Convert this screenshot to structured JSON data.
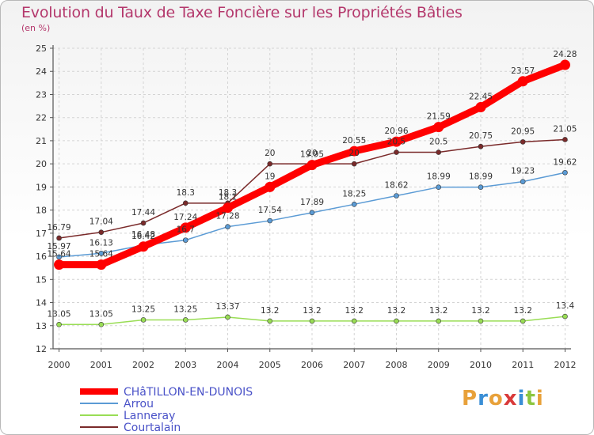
{
  "header": {
    "title": "Evolution du Taux de Taxe Foncière sur les Propriétés Bâties",
    "unit": "(en %)"
  },
  "logo": {
    "text": "Proxiti"
  },
  "colors": {
    "title": "#b4386c",
    "CHÂTILLON-EN-DUNOIS": "#ff0000",
    "Arrou": "#5b9bd5",
    "Lanneray": "#99dd55",
    "Courtalain": "#7a2a2a"
  },
  "chart_data": {
    "type": "line",
    "title": "Evolution du Taux de Taxe Foncière sur les Propriétés Bâties",
    "ylabel": "(en %)",
    "xlabel": "",
    "x": [
      "2000",
      "2001",
      "2002",
      "2003",
      "2004",
      "2005",
      "2006",
      "2007",
      "2008",
      "2009",
      "2010",
      "2011",
      "2012"
    ],
    "ylim": [
      12,
      25
    ],
    "yticks": [
      "12",
      "13",
      "14",
      "15",
      "16",
      "17",
      "18",
      "19",
      "20",
      "21",
      "22",
      "23",
      "24",
      "25"
    ],
    "grid": true,
    "legend": "bottom-left",
    "series": [
      {
        "name": "CHâTILLON-EN-DUNOIS",
        "values": [
          15.64,
          15.64,
          16.42,
          17.24,
          18.1,
          19,
          19.95,
          20.55,
          20.96,
          21.59,
          22.45,
          23.57,
          24.28
        ],
        "labels": [
          "15.64",
          "15.64",
          "16.42",
          "17.24",
          "18.1",
          "19",
          "19.95",
          "20.55",
          "20.96",
          "21.59",
          "22.45",
          "23.57",
          "24.28"
        ]
      },
      {
        "name": "Arrou",
        "values": [
          15.97,
          16.13,
          16.48,
          16.7,
          17.28,
          17.54,
          17.89,
          18.25,
          18.62,
          18.99,
          18.99,
          19.23,
          19.62
        ],
        "labels": [
          "15.97",
          "16.13",
          "16.48",
          "16.7",
          "17.28",
          "17.54",
          "17.89",
          "18.25",
          "18.62",
          "18.99",
          "18.99",
          "19.23",
          "19.62"
        ]
      },
      {
        "name": "Lanneray",
        "values": [
          13.05,
          13.05,
          13.25,
          13.25,
          13.37,
          13.2,
          13.2,
          13.2,
          13.2,
          13.2,
          13.2,
          13.2,
          13.4
        ],
        "labels": [
          "13.05",
          "13.05",
          "13.25",
          "13.25",
          "13.37",
          "13.2",
          "13.2",
          "13.2",
          "13.2",
          "13.2",
          "13.2",
          "13.2",
          "13.4"
        ]
      },
      {
        "name": "Courtalain",
        "values": [
          16.79,
          17.04,
          17.44,
          18.3,
          18.3,
          20,
          20,
          20,
          20.5,
          20.5,
          20.75,
          20.95,
          21.05
        ],
        "labels": [
          "16.79",
          "17.04",
          "17.44",
          "18.3",
          "18.3",
          "20",
          "20",
          "20",
          "20.5",
          "20.5",
          "20.75",
          "20.95",
          "21.05"
        ]
      }
    ]
  }
}
